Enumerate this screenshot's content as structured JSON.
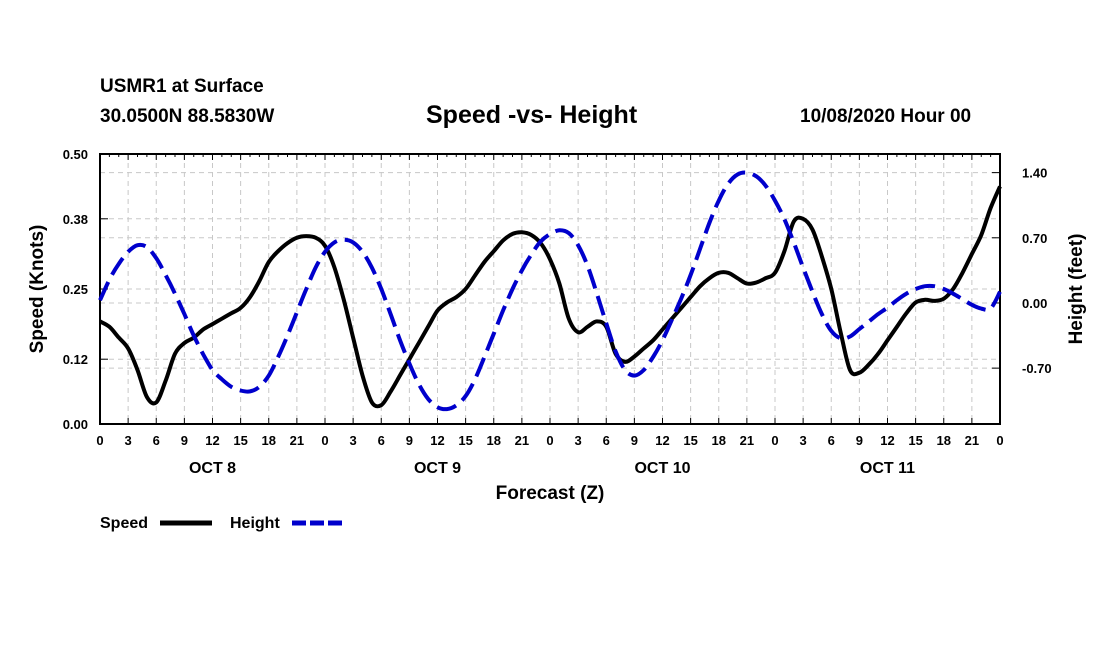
{
  "header": {
    "station": "USMR1 at Surface",
    "coords": "30.0500N 88.5830W",
    "title": "Speed -vs- Height",
    "datetime": "10/08/2020 Hour 00"
  },
  "chart_data": {
    "type": "line",
    "title": "Speed -vs- Height",
    "xlabel": "Forecast (Z)",
    "ylabel_left": "Speed (Knots)",
    "ylabel_right": "Height (feet)",
    "x_range_hours": [
      0,
      96
    ],
    "x_tick_labels": [
      "0",
      "3",
      "6",
      "9",
      "12",
      "15",
      "18",
      "21",
      "0",
      "3",
      "6",
      "9",
      "12",
      "15",
      "18",
      "21",
      "0",
      "3",
      "6",
      "9",
      "12",
      "15",
      "18",
      "21",
      "0",
      "3",
      "6",
      "9",
      "12",
      "15",
      "18",
      "21",
      "0"
    ],
    "day_labels": [
      {
        "label": "OCT 8",
        "hour": 12
      },
      {
        "label": "OCT 9",
        "hour": 36
      },
      {
        "label": "OCT 10",
        "hour": 60
      },
      {
        "label": "OCT 11",
        "hour": 84
      }
    ],
    "left_axis": {
      "ylim": [
        0,
        0.5
      ],
      "ticks": [
        0.0,
        0.12,
        0.25,
        0.38,
        0.5
      ],
      "tick_labels": [
        "0.00",
        "0.12",
        "0.25",
        "0.38",
        "0.50"
      ]
    },
    "right_axis": {
      "ylim": [
        -1.3,
        1.6
      ],
      "ticks": [
        -0.7,
        0.0,
        0.7,
        1.4
      ],
      "tick_labels": [
        "-0.70",
        "0.00",
        "0.70",
        "1.40"
      ]
    },
    "grid": true,
    "series": [
      {
        "name": "Speed",
        "axis": "left",
        "color": "#000000",
        "dash": "solid",
        "x": [
          0,
          1,
          2,
          3,
          4,
          5,
          6,
          7,
          8,
          9,
          10,
          11,
          12,
          13,
          14,
          15,
          16,
          17,
          18,
          19,
          20,
          21,
          22,
          23,
          24,
          25,
          26,
          27,
          28,
          29,
          30,
          31,
          32,
          33,
          34,
          35,
          36,
          37,
          38,
          39,
          40,
          41,
          42,
          43,
          44,
          45,
          46,
          47,
          48,
          49,
          50,
          51,
          52,
          53,
          54,
          55,
          56,
          57,
          58,
          59,
          60,
          61,
          62,
          63,
          64,
          65,
          66,
          67,
          68,
          69,
          70,
          71,
          72,
          73,
          74,
          75,
          76,
          77,
          78,
          79,
          80,
          81,
          82,
          83,
          84,
          85,
          86,
          87,
          88,
          89,
          90,
          91,
          92,
          93,
          94,
          95,
          96
        ],
        "values": [
          0.19,
          0.18,
          0.16,
          0.14,
          0.1,
          0.05,
          0.04,
          0.08,
          0.13,
          0.15,
          0.16,
          0.175,
          0.185,
          0.195,
          0.205,
          0.215,
          0.235,
          0.265,
          0.3,
          0.32,
          0.335,
          0.345,
          0.348,
          0.345,
          0.33,
          0.29,
          0.23,
          0.16,
          0.09,
          0.04,
          0.035,
          0.06,
          0.09,
          0.12,
          0.15,
          0.18,
          0.21,
          0.225,
          0.235,
          0.25,
          0.275,
          0.3,
          0.32,
          0.34,
          0.352,
          0.355,
          0.35,
          0.335,
          0.305,
          0.26,
          0.195,
          0.17,
          0.18,
          0.19,
          0.18,
          0.13,
          0.115,
          0.125,
          0.14,
          0.155,
          0.175,
          0.195,
          0.215,
          0.235,
          0.255,
          0.27,
          0.28,
          0.28,
          0.27,
          0.26,
          0.262,
          0.27,
          0.28,
          0.32,
          0.375,
          0.38,
          0.36,
          0.31,
          0.25,
          0.17,
          0.1,
          0.095,
          0.11,
          0.13,
          0.155,
          0.18,
          0.205,
          0.225,
          0.23,
          0.228,
          0.232,
          0.25,
          0.28,
          0.315,
          0.35,
          0.4,
          0.44
        ]
      },
      {
        "name": "Height",
        "axis": "right",
        "color": "#0000cc",
        "dash": "dashed",
        "x": [
          0,
          1,
          2,
          3,
          4,
          5,
          6,
          7,
          8,
          9,
          10,
          11,
          12,
          13,
          14,
          15,
          16,
          17,
          18,
          19,
          20,
          21,
          22,
          23,
          24,
          25,
          26,
          27,
          28,
          29,
          30,
          31,
          32,
          33,
          34,
          35,
          36,
          37,
          38,
          39,
          40,
          41,
          42,
          43,
          44,
          45,
          46,
          47,
          48,
          49,
          50,
          51,
          52,
          53,
          54,
          55,
          56,
          57,
          58,
          59,
          60,
          61,
          62,
          63,
          64,
          65,
          66,
          67,
          68,
          69,
          70,
          71,
          72,
          73,
          74,
          75,
          76,
          77,
          78,
          79,
          80,
          81,
          82,
          83,
          84,
          85,
          86,
          87,
          88,
          89,
          90,
          91,
          92,
          93,
          94,
          95,
          96
        ],
        "values": [
          0.03,
          0.25,
          0.42,
          0.55,
          0.62,
          0.6,
          0.48,
          0.3,
          0.1,
          -0.12,
          -0.35,
          -0.55,
          -0.72,
          -0.82,
          -0.9,
          -0.94,
          -0.95,
          -0.9,
          -0.78,
          -0.58,
          -0.35,
          -0.1,
          0.15,
          0.38,
          0.55,
          0.65,
          0.68,
          0.65,
          0.55,
          0.38,
          0.15,
          -0.12,
          -0.4,
          -0.65,
          -0.87,
          -1.03,
          -1.12,
          -1.14,
          -1.1,
          -1.0,
          -0.82,
          -0.58,
          -0.33,
          -0.08,
          0.15,
          0.35,
          0.52,
          0.66,
          0.74,
          0.78,
          0.75,
          0.62,
          0.4,
          0.1,
          -0.22,
          -0.52,
          -0.72,
          -0.78,
          -0.72,
          -0.58,
          -0.4,
          -0.18,
          0.05,
          0.3,
          0.58,
          0.86,
          1.1,
          1.28,
          1.38,
          1.4,
          1.36,
          1.26,
          1.1,
          0.9,
          0.65,
          0.38,
          0.12,
          -0.12,
          -0.3,
          -0.38,
          -0.36,
          -0.28,
          -0.2,
          -0.12,
          -0.05,
          0.03,
          0.1,
          0.15,
          0.18,
          0.18,
          0.15,
          0.1,
          0.04,
          -0.02,
          -0.06,
          -0.06,
          0.12
        ]
      }
    ],
    "legend": {
      "position": "bottom-left",
      "items": [
        "Speed",
        "Height"
      ]
    }
  }
}
